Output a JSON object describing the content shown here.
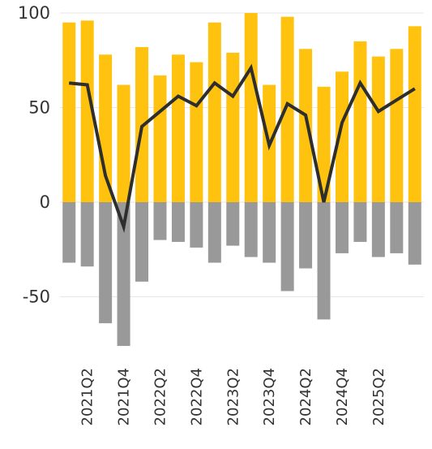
{
  "chart_data": {
    "type": "bar",
    "categories": [
      "2021Q1",
      "2021Q2",
      "2021Q3",
      "2021Q4",
      "2022Q1",
      "2022Q2",
      "2022Q3",
      "2022Q4",
      "2023Q1",
      "2023Q2",
      "2023Q3",
      "2023Q4",
      "2024Q1",
      "2024Q2",
      "2024Q3",
      "2024Q4",
      "2025Q1",
      "2025Q2",
      "2025Q3",
      "2025Q4"
    ],
    "x_tick_labels": [
      "2021Q2",
      "2021Q4",
      "2022Q2",
      "2022Q4",
      "2023Q2",
      "2023Q4",
      "2024Q2",
      "2024Q4",
      "2025Q2"
    ],
    "series": [
      {
        "type": "bar",
        "color": "#FFC20E",
        "values": [
          95,
          96,
          78,
          62,
          82,
          67,
          78,
          74,
          95,
          79,
          100,
          62,
          98,
          81,
          61,
          69,
          85,
          77,
          81,
          93
        ]
      },
      {
        "type": "bar",
        "color": "#999999",
        "values": [
          -32,
          -34,
          -64,
          -76,
          -42,
          -20,
          -21,
          -24,
          -32,
          -23,
          -29,
          -32,
          -47,
          -35,
          -62,
          -27,
          -21,
          -29,
          -27,
          -33
        ]
      },
      {
        "type": "line",
        "color": "#2E2E2E",
        "values": [
          63,
          62,
          14,
          -13,
          40,
          48,
          56,
          51,
          63,
          56,
          71,
          30,
          52,
          46,
          0,
          42,
          63,
          48,
          54,
          60
        ]
      }
    ],
    "yticks": [
      100,
      50,
      0,
      -50
    ],
    "ylim": [
      -82,
      101
    ],
    "grid": true
  }
}
